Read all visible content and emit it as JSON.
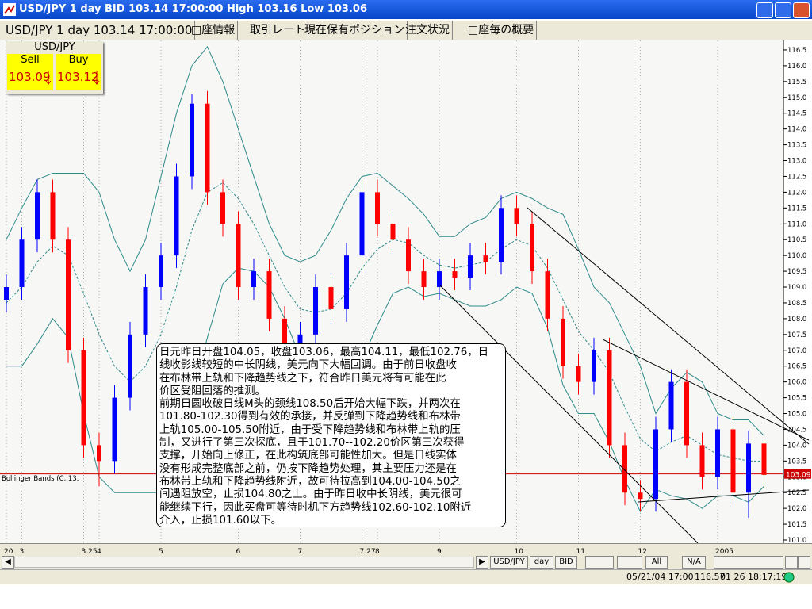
{
  "window": {
    "title": "USD/JPY 1 day BID 103.14 17:00:00 High 103.16 Low 103.06"
  },
  "tabs": [
    "USD/JPY 1 day 103.14 17:00:00",
    "□座情報",
    "取引レート",
    "現在保有ポジション",
    "注文状況",
    "□座毎の概要"
  ],
  "quote": {
    "symbol": "USD/JPY",
    "sell_label": "Sell",
    "buy_label": "Buy",
    "sell": "103.09",
    "buy": "103.12"
  },
  "chart_data": {
    "type": "candlestick",
    "categories": [
      "20",
      "3",
      null,
      null,
      null,
      "3.25",
      "4",
      null,
      null,
      null,
      "5",
      null,
      null,
      null,
      null,
      "6",
      null,
      null,
      null,
      "7",
      null,
      null,
      null,
      "7.27",
      "8",
      null,
      null,
      null,
      "9",
      null,
      null,
      null,
      null,
      "10",
      null,
      null,
      null,
      "11",
      null,
      null,
      null,
      "12",
      null,
      null,
      null,
      null,
      "2005",
      null,
      null,
      null
    ],
    "open": [
      108.6,
      109.0,
      110.5,
      112.0,
      110.5,
      107.0,
      104.0,
      103.5,
      105.5,
      107.5,
      109.0,
      110.0,
      112.5,
      114.8,
      112.0,
      111.0,
      109.0,
      109.5,
      108.0,
      107.0,
      107.5,
      109.0,
      108.3,
      110.0,
      112.0,
      111.0,
      110.5,
      109.5,
      109.0,
      109.5,
      109.3,
      110.0,
      109.8,
      111.5,
      111.0,
      109.5,
      108.0,
      106.5,
      106.0,
      107.0,
      104.0,
      102.5,
      102.3,
      104.5,
      106.0,
      104.0,
      103.0,
      104.5,
      102.5,
      104.05
    ],
    "high": [
      109.4,
      110.9,
      112.4,
      112.4,
      110.9,
      107.4,
      104.4,
      105.9,
      107.9,
      109.4,
      110.4,
      112.9,
      115.1,
      115.2,
      112.4,
      111.4,
      109.9,
      109.9,
      108.4,
      107.9,
      109.4,
      109.4,
      110.4,
      112.4,
      112.4,
      111.4,
      110.9,
      109.9,
      109.9,
      109.9,
      110.4,
      110.4,
      111.9,
      111.9,
      111.4,
      109.9,
      108.4,
      106.9,
      107.4,
      107.4,
      104.4,
      102.9,
      104.9,
      106.4,
      106.4,
      104.4,
      104.9,
      104.9,
      104.45,
      104.11
    ],
    "low": [
      108.2,
      108.6,
      110.1,
      110.1,
      106.6,
      103.6,
      102.7,
      103.1,
      105.1,
      107.1,
      108.6,
      109.6,
      112.1,
      111.6,
      110.6,
      108.6,
      108.6,
      107.6,
      106.6,
      106.6,
      107.1,
      107.9,
      107.9,
      109.6,
      110.6,
      110.1,
      109.1,
      108.6,
      108.6,
      108.9,
      108.9,
      109.4,
      109.4,
      110.6,
      109.1,
      107.6,
      106.1,
      105.6,
      105.6,
      103.6,
      102.1,
      101.9,
      101.9,
      104.1,
      103.6,
      102.6,
      102.6,
      102.1,
      101.7,
      102.76
    ],
    "close": [
      109.0,
      110.5,
      112.0,
      110.5,
      107.0,
      104.0,
      103.5,
      105.5,
      107.5,
      109.0,
      110.0,
      112.5,
      114.8,
      112.0,
      111.0,
      109.0,
      109.5,
      108.0,
      107.0,
      107.5,
      109.0,
      108.3,
      110.0,
      112.0,
      111.0,
      110.5,
      109.5,
      109.0,
      109.5,
      109.3,
      110.0,
      109.8,
      111.5,
      111.0,
      109.5,
      108.0,
      106.5,
      106.0,
      107.0,
      104.0,
      102.5,
      102.3,
      104.5,
      106.0,
      104.0,
      103.0,
      104.5,
      102.5,
      104.05,
      103.06
    ],
    "up_color": "#0000ff",
    "down_color": "#ff0000",
    "bands": {
      "label": "Bollinger Bands (C, 13.",
      "color": "#2e8b8b",
      "upper": [
        110.5,
        111.5,
        112.4,
        112.6,
        112.6,
        112.6,
        112.0,
        110.5,
        109.5,
        110.5,
        112.5,
        114.5,
        116.0,
        116.6,
        115.5,
        114.0,
        112.5,
        111.0,
        110.0,
        109.8,
        110.0,
        110.8,
        111.8,
        112.5,
        112.6,
        112.2,
        111.8,
        111.3,
        110.6,
        110.6,
        111.0,
        111.2,
        111.8,
        112.0,
        111.8,
        111.5,
        111.3,
        110.2,
        109.0,
        108.5,
        107.5,
        106.5,
        105.0,
        105.8,
        106.3,
        106.0,
        105.0,
        104.8,
        104.8,
        104.3
      ],
      "middle": [
        108.5,
        109.0,
        109.8,
        110.3,
        110.0,
        108.8,
        107.5,
        106.5,
        106.0,
        106.5,
        107.5,
        109.0,
        110.8,
        112.0,
        112.3,
        111.8,
        111.0,
        110.0,
        109.0,
        108.3,
        108.2,
        108.3,
        108.8,
        109.6,
        110.2,
        110.5,
        110.4,
        110.0,
        109.7,
        109.6,
        109.7,
        109.8,
        110.2,
        110.5,
        110.3,
        109.6,
        108.6,
        107.6,
        107.0,
        106.3,
        105.2,
        104.2,
        103.8,
        104.1,
        104.3,
        104.0,
        103.7,
        103.6,
        103.5,
        103.5
      ],
      "lower": [
        106.5,
        106.5,
        107.2,
        108.0,
        107.4,
        105.0,
        103.0,
        102.5,
        102.5,
        102.5,
        102.5,
        103.5,
        105.6,
        107.4,
        109.1,
        109.6,
        109.5,
        109.0,
        108.0,
        106.8,
        106.4,
        105.8,
        105.8,
        106.7,
        107.8,
        108.8,
        109.0,
        108.7,
        108.8,
        108.6,
        108.4,
        108.4,
        108.6,
        109.0,
        108.8,
        107.7,
        105.9,
        105.0,
        105.0,
        104.1,
        102.9,
        101.9,
        102.6,
        102.4,
        102.3,
        102.0,
        102.4,
        102.4,
        102.2,
        102.7
      ]
    },
    "last_price": 103.09,
    "last_price_color": "#cc0000",
    "ylim": [
      100.9,
      116.8
    ],
    "yticks": [
      {
        "value": 101,
        "label": "101.0"
      },
      101.5,
      {
        "value": 102,
        "label": "102.0"
      },
      102.5,
      {
        "value": 103,
        "label": "103.0"
      },
      103.5,
      {
        "value": 104,
        "label": "104.0"
      },
      104.5,
      {
        "value": 105,
        "label": "105.0"
      },
      105.5,
      {
        "value": 106,
        "label": "106.0"
      },
      106.5,
      {
        "value": 107,
        "label": "107.0"
      },
      107.5,
      {
        "value": 108,
        "label": "108.0"
      },
      108.5,
      {
        "value": 109,
        "label": "109.0"
      },
      109.5,
      {
        "value": 110,
        "label": "110.0"
      },
      110.5,
      {
        "value": 111,
        "label": "111.0"
      },
      111.5,
      {
        "value": 112,
        "label": "112.0"
      },
      112.5,
      {
        "value": 113,
        "label": "113.0"
      },
      113.5,
      {
        "value": 114,
        "label": "114.0"
      },
      114.5,
      {
        "value": 115,
        "label": "115.0"
      },
      115.5,
      {
        "value": 116,
        "label": "116.0"
      },
      116.5
    ],
    "annotation": [
      "日元昨日开盘104.05，收盘103.06，最高104.11，最低102.76，日",
      "线收影线较短的中长阴线，美元向下大幅回调。由于前日收盘收",
      "在布林带上轨和下降趋势线之下，符合昨日美元将有可能在此",
      "价区受阻回落的推测。",
      "前期日圆收破日线M头的颈线108.50后开始大幅下跌，并两次在",
      "101.80-102.30得到有效的承接，并反弹到下降趋势线和布林带",
      "上轨105.00-105.50附近，由于受下降趋势线和布林带上轨的压",
      "制，又进行了第三次探底，且于101.70--102.20价区第三次获得",
      "支撑，开始向上修正，在此构筑底部可能性加大。但是日线实体",
      "没有形成完整底部之前，仍按下降趋势处理，其主要压力还是在",
      "布林带上轨和下降趋势线附近，故可待拉高到104.00-104.50之",
      "间遇阻放空，止损104.80之上。由于昨日收中长阴线，美元很可",
      "能继续下行，因此买盘可等待时机下方趋势线102.60-102.10附近",
      "介入，止损101.60以下。"
    ]
  },
  "toolbar": {
    "buttons": [
      "USD/JPY",
      "day",
      "BID"
    ],
    "range": "All",
    "na": "N/A"
  },
  "status": {
    "time": "05/21/04 17:00",
    "price": "116.57",
    "clock": "01 26 18:17:19"
  }
}
